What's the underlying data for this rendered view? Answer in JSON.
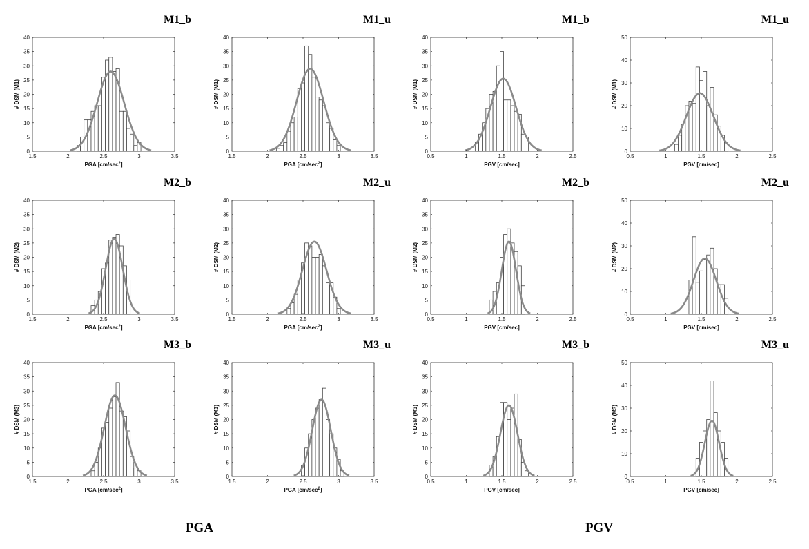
{
  "group_labels": {
    "left": "PGA",
    "right": "PGV"
  },
  "chart_data": [
    {
      "type": "bar",
      "title": "M1_b",
      "xlabel": "PGA [cm/sec",
      "xlabel_sup": "2",
      "xlabel_end": "]",
      "ylabel": "# DSM (M1)",
      "xlim": [
        1.5,
        3.5
      ],
      "ylim": [
        0,
        40
      ],
      "xticks": [
        1.5,
        2,
        2.5,
        3,
        3.5
      ],
      "yticks": [
        0,
        5,
        10,
        15,
        20,
        25,
        30,
        35,
        40
      ],
      "bins_x": [
        2.15,
        2.2,
        2.25,
        2.3,
        2.35,
        2.4,
        2.45,
        2.5,
        2.55,
        2.6,
        2.65,
        2.7,
        2.75,
        2.8,
        2.85,
        2.9,
        2.95,
        3.0
      ],
      "bins_y": [
        2,
        5,
        11,
        11,
        14,
        16,
        16,
        26,
        32,
        33,
        28,
        29,
        14,
        14,
        8,
        6,
        2,
        3
      ],
      "fit_mean": 2.6,
      "fit_sd": 0.19,
      "fit_peak": 28
    },
    {
      "type": "bar",
      "title": "M1_u",
      "xlabel": "PGA [cm/sec",
      "xlabel_sup": "2",
      "xlabel_end": "]",
      "ylabel": "# DSM (M1)",
      "xlim": [
        1.5,
        3.5
      ],
      "ylim": [
        0,
        40
      ],
      "xticks": [
        1.5,
        2,
        2.5,
        3,
        3.5
      ],
      "yticks": [
        0,
        5,
        10,
        15,
        20,
        25,
        30,
        35,
        40
      ],
      "bins_x": [
        2.1,
        2.15,
        2.2,
        2.25,
        2.3,
        2.35,
        2.4,
        2.45,
        2.5,
        2.55,
        2.6,
        2.65,
        2.7,
        2.75,
        2.8,
        2.85,
        2.9,
        2.95,
        3.0
      ],
      "bins_y": [
        1,
        1,
        2,
        3,
        7,
        10,
        12,
        22,
        24,
        37,
        34,
        26,
        19,
        18,
        16,
        10,
        8,
        4,
        2
      ],
      "fit_mean": 2.6,
      "fit_sd": 0.19,
      "fit_peak": 29
    },
    {
      "type": "bar",
      "title": "M1_b",
      "xlabel": "PGV [cm/sec]",
      "xlabel_sup": "",
      "xlabel_end": "",
      "ylabel": "# DSM (M1)",
      "xlim": [
        0.5,
        2.5
      ],
      "ylim": [
        0,
        40
      ],
      "xticks": [
        0.5,
        1,
        1.5,
        2,
        2.5
      ],
      "yticks": [
        0,
        5,
        10,
        15,
        20,
        25,
        30,
        35,
        40
      ],
      "bins_x": [
        1.15,
        1.2,
        1.25,
        1.3,
        1.35,
        1.4,
        1.45,
        1.5,
        1.55,
        1.6,
        1.65,
        1.7,
        1.75,
        1.8,
        1.85
      ],
      "bins_y": [
        3,
        6,
        10,
        15,
        20,
        21,
        30,
        35,
        18,
        18,
        16,
        14,
        13,
        6,
        5
      ],
      "fit_mean": 1.52,
      "fit_sd": 0.18,
      "fit_peak": 25.5
    },
    {
      "type": "bar",
      "title": "M1_u",
      "xlabel": "PGV [cm/sec]",
      "xlabel_sup": "",
      "xlabel_end": "",
      "ylabel": "# DSM (M1)",
      "xlim": [
        0.5,
        2.5
      ],
      "ylim": [
        0,
        50
      ],
      "xticks": [
        0.5,
        1,
        1.5,
        2,
        2.5
      ],
      "yticks": [
        0,
        10,
        20,
        30,
        40,
        50
      ],
      "bins_x": [
        1.15,
        1.2,
        1.25,
        1.3,
        1.35,
        1.4,
        1.45,
        1.5,
        1.55,
        1.6,
        1.65,
        1.7,
        1.75,
        1.8,
        1.85
      ],
      "bins_y": [
        3,
        7,
        12,
        20,
        22,
        21,
        37,
        31,
        35,
        20,
        28,
        16,
        11,
        7,
        4
      ],
      "fit_mean": 1.48,
      "fit_sd": 0.19,
      "fit_peak": 25.5
    },
    {
      "type": "bar",
      "title": "M2_b",
      "xlabel": "PGA [cm/sec",
      "xlabel_sup": "2",
      "xlabel_end": "]",
      "ylabel": "# DSM (M2)",
      "xlim": [
        1.5,
        3.5
      ],
      "ylim": [
        0,
        40
      ],
      "xticks": [
        1.5,
        2,
        2.5,
        3,
        3.5
      ],
      "yticks": [
        0,
        5,
        10,
        15,
        20,
        25,
        30,
        35,
        40
      ],
      "bins_x": [
        2.35,
        2.4,
        2.45,
        2.5,
        2.55,
        2.6,
        2.65,
        2.7,
        2.75,
        2.8,
        2.85
      ],
      "bins_y": [
        3,
        5,
        8,
        16,
        18,
        26,
        27,
        28,
        24,
        17,
        12
      ],
      "fit_mean": 2.65,
      "fit_sd": 0.12,
      "fit_peak": 26.5
    },
    {
      "type": "bar",
      "title": "M2_u",
      "xlabel": "PGA [cm/sec",
      "xlabel_sup": "2",
      "xlabel_end": "]",
      "ylabel": "# DSM (M2)",
      "xlim": [
        1.5,
        3.5
      ],
      "ylim": [
        0,
        40
      ],
      "xticks": [
        1.5,
        2,
        2.5,
        3,
        3.5
      ],
      "yticks": [
        0,
        5,
        10,
        15,
        20,
        25,
        30,
        35,
        40
      ],
      "bins_x": [
        2.3,
        2.35,
        2.4,
        2.45,
        2.5,
        2.55,
        2.6,
        2.65,
        2.7,
        2.75,
        2.8,
        2.85,
        2.9,
        2.95,
        3.0
      ],
      "bins_y": [
        2,
        4,
        7,
        12,
        18,
        25,
        24,
        20,
        20,
        21,
        17,
        11,
        11,
        6,
        2
      ],
      "fit_mean": 2.66,
      "fit_sd": 0.17,
      "fit_peak": 25.5
    },
    {
      "type": "bar",
      "title": "M2_b",
      "xlabel": "PGV [cm/sec]",
      "xlabel_sup": "",
      "xlabel_end": "",
      "ylabel": "# DSM (M2)",
      "xlim": [
        0.5,
        2.5
      ],
      "ylim": [
        0,
        40
      ],
      "xticks": [
        0.5,
        1,
        1.5,
        2,
        2.5
      ],
      "yticks": [
        0,
        5,
        10,
        15,
        20,
        25,
        30,
        35,
        40
      ],
      "bins_x": [
        1.35,
        1.4,
        1.45,
        1.5,
        1.55,
        1.6,
        1.65,
        1.7,
        1.75,
        1.8
      ],
      "bins_y": [
        5,
        8,
        11,
        20,
        28,
        30,
        25,
        22,
        17,
        10
      ],
      "fit_mean": 1.6,
      "fit_sd": 0.1,
      "fit_peak": 25.5
    },
    {
      "type": "bar",
      "title": "M2_u",
      "xlabel": "PGV [cm/sec]",
      "xlabel_sup": "",
      "xlabel_end": "",
      "ylabel": "# DSM (M2)",
      "xlim": [
        0.5,
        2.5
      ],
      "ylim": [
        0,
        50
      ],
      "xticks": [
        0.5,
        1,
        1.5,
        2,
        2.5
      ],
      "yticks": [
        0,
        10,
        20,
        30,
        40,
        50
      ],
      "bins_x": [
        1.35,
        1.4,
        1.45,
        1.5,
        1.55,
        1.6,
        1.65,
        1.7,
        1.75,
        1.8,
        1.85
      ],
      "bins_y": [
        15,
        34,
        14,
        19,
        24,
        26,
        29,
        20,
        13,
        13,
        7
      ],
      "fit_mean": 1.55,
      "fit_sd": 0.16,
      "fit_peak": 24.5
    },
    {
      "type": "bar",
      "title": "M3_b",
      "xlabel": "PGA [cm/sec",
      "xlabel_sup": "2",
      "xlabel_end": "]",
      "ylabel": "# DSM (M3)",
      "xlim": [
        1.5,
        3.5
      ],
      "ylim": [
        0,
        40
      ],
      "xticks": [
        1.5,
        2,
        2.5,
        3,
        3.5
      ],
      "yticks": [
        0,
        5,
        10,
        15,
        20,
        25,
        30,
        35,
        40
      ],
      "bins_x": [
        2.35,
        2.4,
        2.45,
        2.5,
        2.55,
        2.6,
        2.65,
        2.7,
        2.75,
        2.8,
        2.85,
        2.9,
        2.95,
        3.0
      ],
      "bins_y": [
        2,
        5,
        10,
        17,
        19,
        24,
        28,
        33,
        23,
        21,
        16,
        7,
        3,
        2
      ],
      "fit_mean": 2.66,
      "fit_sd": 0.15,
      "fit_peak": 28.5
    },
    {
      "type": "bar",
      "title": "M3_u",
      "xlabel": "PGA [cm/sec",
      "xlabel_sup": "2",
      "xlabel_end": "]",
      "ylabel": "# DSM (M3)",
      "xlim": [
        1.5,
        3.5
      ],
      "ylim": [
        0,
        40
      ],
      "xticks": [
        1.5,
        2,
        2.5,
        3,
        3.5
      ],
      "yticks": [
        0,
        5,
        10,
        15,
        20,
        25,
        30,
        35,
        40
      ],
      "bins_x": [
        2.5,
        2.55,
        2.6,
        2.65,
        2.7,
        2.75,
        2.8,
        2.85,
        2.9,
        2.95,
        3.0,
        3.05
      ],
      "bins_y": [
        4,
        10,
        15,
        20,
        24,
        27,
        31,
        20,
        15,
        10,
        6,
        2
      ],
      "fit_mean": 2.76,
      "fit_sd": 0.13,
      "fit_peak": 27
    },
    {
      "type": "bar",
      "title": "M3_b",
      "xlabel": "PGV [cm/sec]",
      "xlabel_sup": "",
      "xlabel_end": "",
      "ylabel": "# DSM (M3)",
      "xlim": [
        0.5,
        2.5
      ],
      "ylim": [
        0,
        40
      ],
      "xticks": [
        0.5,
        1,
        1.5,
        2,
        2.5
      ],
      "yticks": [
        0,
        5,
        10,
        15,
        20,
        25,
        30,
        35,
        40
      ],
      "bins_x": [
        1.35,
        1.4,
        1.45,
        1.5,
        1.55,
        1.6,
        1.65,
        1.7,
        1.75,
        1.8,
        1.85
      ],
      "bins_y": [
        4,
        7,
        14,
        26,
        26,
        20,
        24,
        29,
        13,
        5,
        2
      ],
      "fit_mean": 1.6,
      "fit_sd": 0.12,
      "fit_peak": 25
    },
    {
      "type": "bar",
      "title": "M3_u",
      "xlabel": "PGV [cm/sec]",
      "xlabel_sup": "",
      "xlabel_end": "",
      "ylabel": "# DSM (M3)",
      "xlim": [
        0.5,
        2.5
      ],
      "ylim": [
        0,
        50
      ],
      "xticks": [
        0.5,
        1,
        1.5,
        2,
        2.5
      ],
      "yticks": [
        0,
        10,
        20,
        30,
        40,
        50
      ],
      "bins_x": [
        1.45,
        1.5,
        1.55,
        1.6,
        1.65,
        1.7,
        1.75,
        1.8,
        1.85
      ],
      "bins_y": [
        8,
        15,
        20,
        25,
        42,
        28,
        20,
        15,
        8
      ],
      "fit_mean": 1.65,
      "fit_sd": 0.1,
      "fit_peak": 24.5
    }
  ]
}
